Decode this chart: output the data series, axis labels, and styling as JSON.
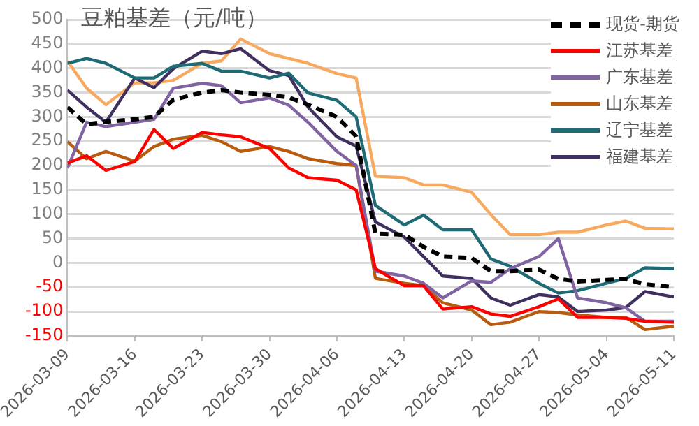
{
  "chart_data": {
    "type": "line",
    "title": "豆粕基差（元/吨）",
    "x": [
      "2026-03-09",
      "2026-03-11",
      "2026-03-13",
      "2026-03-16",
      "2026-03-18",
      "2026-03-20",
      "2026-03-23",
      "2026-03-25",
      "2026-03-27",
      "2026-03-30",
      "2026-04-01",
      "2026-04-03",
      "2026-04-06",
      "2026-04-08",
      "2026-04-10",
      "2026-04-13",
      "2026-04-15",
      "2026-04-17",
      "2026-04-20",
      "2026-04-22",
      "2026-04-24",
      "2026-04-27",
      "2026-04-29",
      "2026-05-01",
      "2026-05-04",
      "2026-05-06",
      "2026-05-08",
      "2026-05-11"
    ],
    "series": [
      {
        "name": "现货-期货",
        "color": "#000000",
        "line_style": "dashed",
        "values": [
          320,
          285,
          290,
          295,
          300,
          335,
          350,
          355,
          350,
          345,
          340,
          325,
          300,
          260,
          60,
          58,
          33,
          13,
          10,
          -17,
          -17,
          -14,
          -33,
          -38,
          -35,
          -33,
          -44,
          -50
        ]
      },
      {
        "name": "江苏基差",
        "color": "#ff0000",
        "values": [
          205,
          220,
          190,
          208,
          274,
          235,
          268,
          263,
          259,
          235,
          195,
          175,
          170,
          150,
          -12,
          -47,
          -47,
          -95,
          -90,
          -105,
          -110,
          -90,
          -74,
          -112,
          -112,
          -114,
          -120,
          -122
        ]
      },
      {
        "name": "广东基差",
        "color": "#8064a2",
        "values": [
          195,
          289,
          280,
          289,
          295,
          359,
          369,
          364,
          329,
          339,
          324,
          289,
          229,
          200,
          -17,
          -27,
          -42,
          -72,
          -37,
          -40,
          -12,
          13,
          50,
          -72,
          -82,
          -92,
          -120,
          -120
        ]
      },
      {
        "name": "山东基差",
        "color": "#b85c10",
        "values": [
          249,
          214,
          229,
          209,
          239,
          254,
          262,
          249,
          229,
          239,
          229,
          214,
          204,
          200,
          -32,
          -42,
          -47,
          -82,
          -97,
          -127,
          -122,
          -100,
          -102,
          -107,
          -112,
          -112,
          -137,
          -130
        ]
      },
      {
        "name": "辽宁基差",
        "color": "#1f6b75",
        "values": [
          410,
          420,
          410,
          380,
          380,
          404,
          410,
          394,
          394,
          380,
          390,
          349,
          334,
          300,
          118,
          78,
          98,
          68,
          68,
          8,
          -7,
          -42,
          -62,
          -57,
          -42,
          -32,
          -10,
          -12
        ]
      },
      {
        "name": "福建基差",
        "color": "#403060",
        "values": [
          355,
          320,
          289,
          380,
          360,
          399,
          435,
          430,
          440,
          395,
          385,
          320,
          259,
          240,
          84,
          53,
          13,
          -27,
          -32,
          -72,
          -87,
          -65,
          -70,
          -100,
          -97,
          -92,
          -59,
          -70
        ]
      },
      {
        "color": "#f8a960",
        "values": [
          415,
          359,
          325,
          370,
          370,
          375,
          410,
          415,
          460,
          430,
          420,
          410,
          389,
          380,
          178,
          175,
          160,
          160,
          145,
          99,
          58,
          58,
          63,
          63,
          78,
          86,
          71,
          70
        ]
      }
    ],
    "xlim": [
      "2026-03-09",
      "2026-05-11"
    ],
    "xticks": [
      "2026-03-09",
      "2026-03-16",
      "2026-03-23",
      "2026-03-30",
      "2026-04-06",
      "2026-04-13",
      "2026-04-20",
      "2026-04-27",
      "2026-05-04",
      "2026-05-11"
    ],
    "ylim": [
      -150,
      500
    ],
    "yticks": [
      -150,
      -100,
      -50,
      0,
      50,
      100,
      150,
      200,
      250,
      300,
      350,
      400,
      450,
      500
    ],
    "grid": "y",
    "legend": "top right",
    "marker": "none"
  }
}
